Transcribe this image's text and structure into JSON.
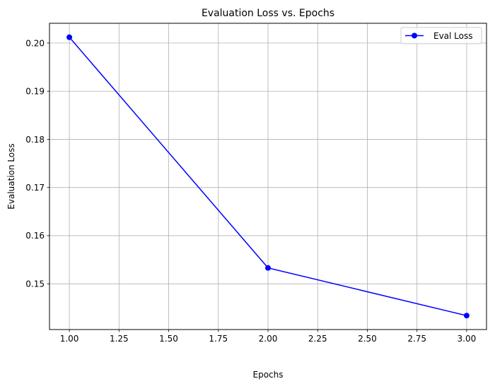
{
  "chart_data": {
    "type": "line",
    "title": "Evaluation Loss vs. Epochs",
    "xlabel": "Epochs",
    "ylabel": "Evaluation Loss",
    "x": [
      1,
      2,
      3
    ],
    "series": [
      {
        "name": "Eval Loss",
        "values": [
          0.2012,
          0.1533,
          0.1434
        ],
        "color": "#0000ff",
        "marker": "circle"
      }
    ],
    "xlim": [
      0.9,
      3.1
    ],
    "ylim": [
      0.1405,
      0.2041
    ],
    "xticks": [
      1.0,
      1.25,
      1.5,
      1.75,
      2.0,
      2.25,
      2.5,
      2.75,
      3.0
    ],
    "xtick_labels": [
      "1.00",
      "1.25",
      "1.50",
      "1.75",
      "2.00",
      "2.25",
      "2.50",
      "2.75",
      "3.00"
    ],
    "yticks": [
      0.15,
      0.16,
      0.17,
      0.18,
      0.19,
      0.2
    ],
    "ytick_labels": [
      "0.15",
      "0.16",
      "0.17",
      "0.18",
      "0.19",
      "0.20"
    ],
    "grid": true,
    "legend_position": "top-right"
  }
}
